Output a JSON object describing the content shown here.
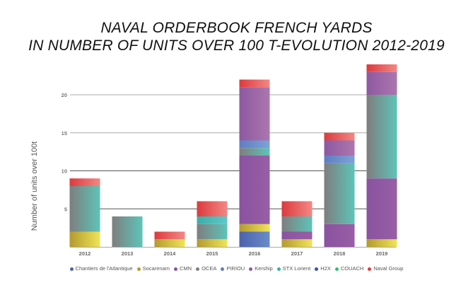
{
  "chart_data": {
    "type": "bar",
    "stacked": true,
    "title": [
      "NAVAL ORDERBOOK FRENCH YARDS",
      "IN NUMBER OF UNITS OVER 100 T-EVOLUTION 2012-2019"
    ],
    "xlabel": "",
    "ylabel": "Number of units over 100t",
    "ylim": [
      0,
      24
    ],
    "yticks": [
      5,
      10,
      15,
      20
    ],
    "grid": true,
    "legend_position": "bottom",
    "categories": [
      "2012",
      "2013",
      "2014",
      "2015",
      "2016",
      "2017",
      "2018",
      "2019"
    ],
    "series": [
      {
        "name": "Chantiers de l'Atlantique",
        "color": "#4a62ae",
        "color2": "#6c8cc8",
        "values": [
          0,
          0,
          0,
          0,
          2,
          0,
          0,
          0
        ]
      },
      {
        "name": "Socarenam",
        "color": "#b39a2e",
        "color2": "#f0e458",
        "values": [
          2,
          0,
          1,
          1,
          1,
          1,
          0,
          1
        ]
      },
      {
        "name": "CMN",
        "color": "#8a52a0",
        "color2": "#985ea6",
        "values": [
          0,
          0,
          0,
          0,
          9,
          1,
          3,
          8
        ]
      },
      {
        "name": "OCEA",
        "color": "#7e7e7e",
        "color2": "#5ec4b8",
        "values": [
          6,
          4,
          0,
          2,
          1,
          2,
          8,
          11
        ]
      },
      {
        "name": "PIRIOU",
        "color": "#5e7ec0",
        "color2": "#7ea2d8",
        "values": [
          0,
          0,
          0,
          0,
          1,
          0,
          1,
          0
        ]
      },
      {
        "name": "Kership",
        "color": "#8e58a2",
        "color2": "#ac76ae",
        "values": [
          0,
          0,
          0,
          0,
          7,
          0,
          2,
          3
        ]
      },
      {
        "name": "STX Lorient",
        "color": "#3aaea8",
        "color2": "#5ec8cc",
        "values": [
          0,
          0,
          0,
          1,
          0,
          0,
          0,
          0
        ]
      },
      {
        "name": "H2X",
        "color": "#3a52a0",
        "color2": "#3a52a0",
        "values": [
          0,
          0,
          0,
          0,
          0,
          0,
          0,
          0
        ]
      },
      {
        "name": "COUACH",
        "color": "#3cb878",
        "color2": "#3cb878",
        "values": [
          0,
          0,
          0,
          0,
          0,
          0,
          0,
          0
        ]
      },
      {
        "name": "Naval Group",
        "color": "#dc3a3e",
        "color2": "#f28884",
        "values": [
          1,
          0,
          1,
          2,
          1,
          2,
          1,
          1
        ]
      }
    ]
  }
}
